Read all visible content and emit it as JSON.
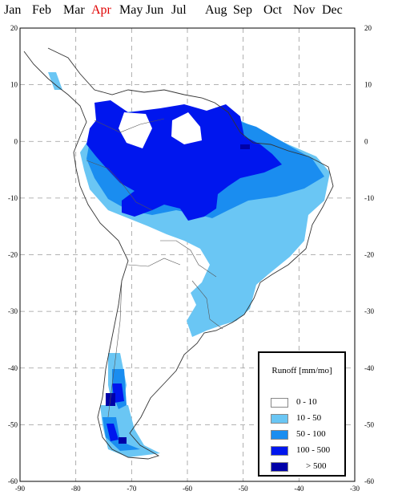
{
  "months": {
    "items": [
      "Jan",
      "Feb",
      "Mar",
      "Apr",
      "May",
      "Jun",
      "Jul",
      "Aug",
      "Sep",
      "Oct",
      "Nov",
      "Dec"
    ],
    "selected": "Apr",
    "selected_color": "#e00000"
  },
  "map": {
    "region": "South America",
    "lon_range": [
      -90,
      -30
    ],
    "lat_range": [
      -60,
      20
    ],
    "x_ticks": [
      "-90",
      "-80",
      "-70",
      "-60",
      "-50",
      "-40",
      "-30"
    ],
    "y_ticks": [
      "20",
      "10",
      "0",
      "-10",
      "-20",
      "-30",
      "-40",
      "-50",
      "-60"
    ],
    "grid": true
  },
  "legend": {
    "title": "Runoff [mm/mo]",
    "entries": [
      {
        "label": "0  -  10",
        "color": "#ffffff"
      },
      {
        "label": "10  -  50",
        "color": "#6ac6f4"
      },
      {
        "label": "50  -  100",
        "color": "#1a8df0"
      },
      {
        "label": "100  -  500",
        "color": "#0016ee"
      },
      {
        "label": "> 500",
        "color": "#0000a8"
      }
    ]
  }
}
